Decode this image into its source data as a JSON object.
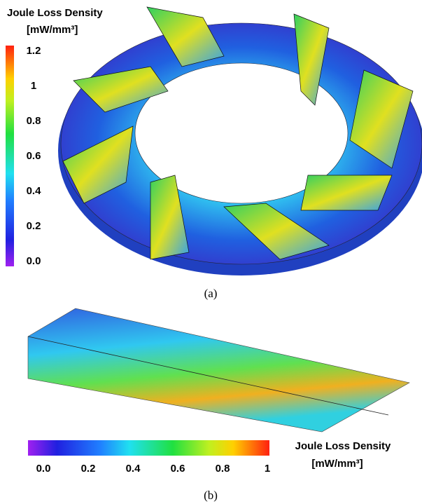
{
  "panel_a": {
    "colorbar_title": "Joule Loss Density",
    "colorbar_unit": "[mW/mm³]",
    "tick_labels": [
      "1.2",
      "1",
      "0.8",
      "0.6",
      "0.4",
      "0.2",
      "0.0"
    ],
    "caption": "(a)"
  },
  "panel_b": {
    "colorbar_title": "Joule Loss Density",
    "colorbar_unit": "[mW/mm³]",
    "tick_labels": [
      "0.0",
      "0.2",
      "0.4",
      "0.6",
      "0.8",
      "1"
    ],
    "caption": "(b)"
  }
}
